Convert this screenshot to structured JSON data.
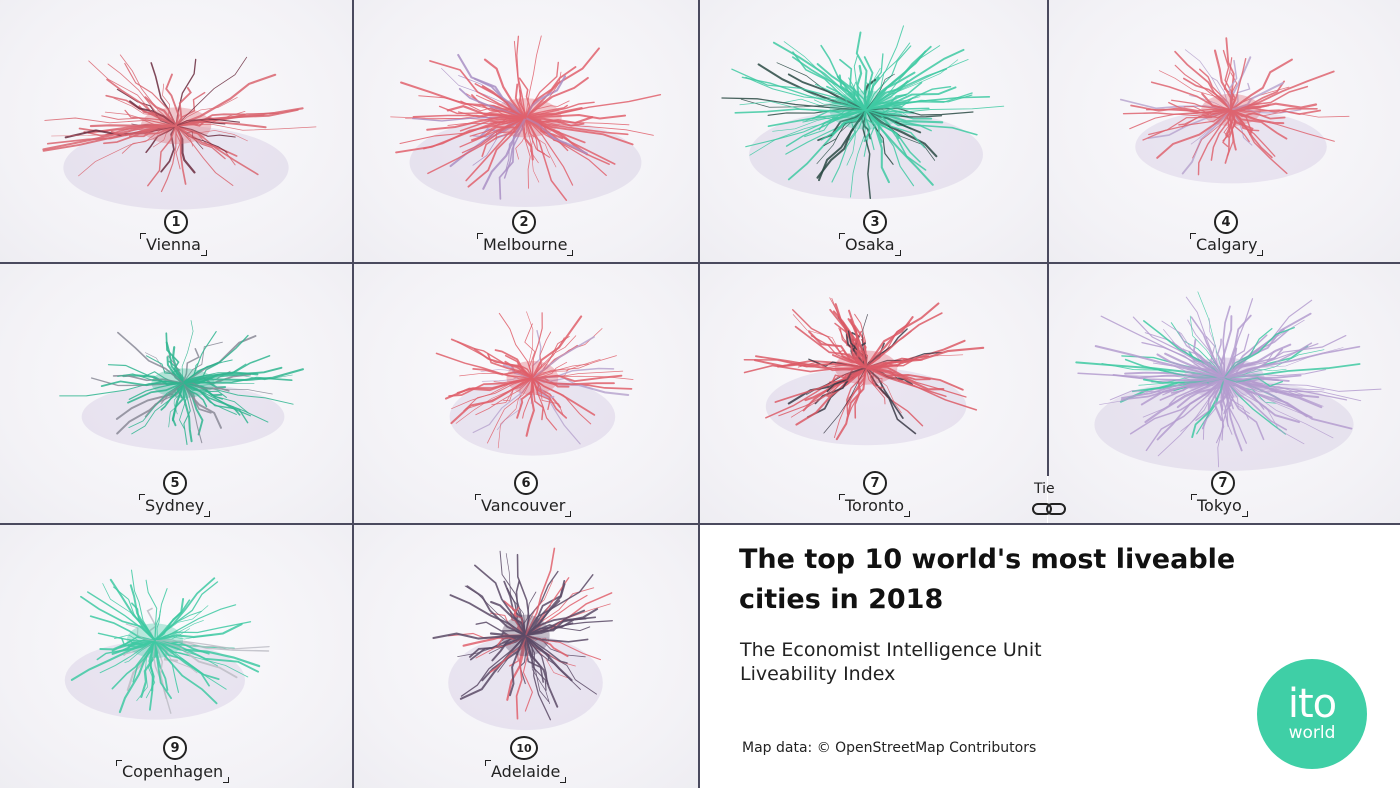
{
  "cities": [
    {
      "rank": "1",
      "name": "Vienna",
      "color": "#d9646e",
      "accent": "#6a2a3d"
    },
    {
      "rank": "2",
      "name": "Melbourne",
      "color": "#e0606c",
      "accent": "#a98fc4"
    },
    {
      "rank": "3",
      "name": "Osaka",
      "color": "#3ec9a2",
      "accent": "#2a4a44"
    },
    {
      "rank": "4",
      "name": "Calgary",
      "color": "#de6470",
      "accent": "#b9a6cf"
    },
    {
      "rank": "5",
      "name": "Sydney",
      "color": "#2fb58f",
      "accent": "#8a8a96"
    },
    {
      "rank": "6",
      "name": "Vancouver",
      "color": "#df5f6a",
      "accent": "#b9a6cf"
    },
    {
      "rank": "7",
      "name": "Toronto",
      "color": "#dc5a66",
      "accent": "#3a3a46"
    },
    {
      "rank": "7",
      "name": "Tokyo",
      "color": "#b49ccf",
      "accent": "#3ec9a2"
    },
    {
      "rank": "9",
      "name": "Copenhagen",
      "color": "#3ec9a2",
      "accent": "#bdbdc6"
    },
    {
      "rank": "10",
      "name": "Adelaide",
      "color": "#5b4a66",
      "accent": "#e0606c"
    }
  ],
  "tie_label": "Tie",
  "title": "The top 10 world's most liveable cities in 2018",
  "subtitle_line1": "The Economist Intelligence Unit",
  "subtitle_line2": "Liveability Index",
  "source": "Map data: © OpenStreetMap Contributors",
  "logo": {
    "top": "ito",
    "bottom": "world",
    "color": "#3fcfa6"
  },
  "grid_line_color": "#4a4a5e"
}
